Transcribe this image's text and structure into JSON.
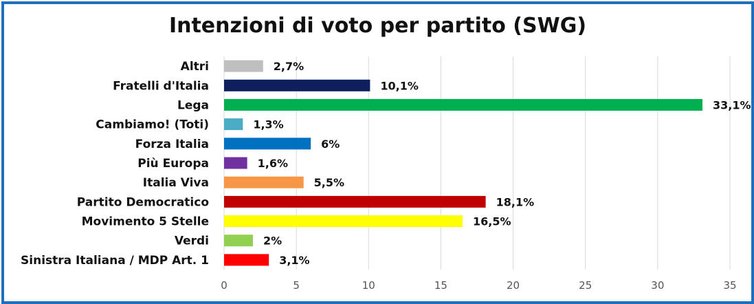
{
  "chart_data": {
    "type": "bar",
    "orientation": "horizontal",
    "title": "Intenzioni di voto per partito (SWG)",
    "categories": [
      "Altri",
      "Fratelli d'Italia",
      "Lega",
      "Cambiamo! (Toti)",
      "Forza Italia",
      "Più Europa",
      "Italia Viva",
      "Partito Democratico",
      "Movimento 5 Stelle",
      "Verdi",
      "Sinistra Italiana / MDP Art. 1"
    ],
    "values": [
      2.7,
      10.1,
      33.1,
      1.3,
      6,
      1.6,
      5.5,
      18.1,
      16.5,
      2,
      3.1
    ],
    "value_labels": [
      "2,7%",
      "10,1%",
      "33,1%",
      "1,3%",
      "6%",
      "1,6%",
      "5,5%",
      "18,1%",
      "16,5%",
      "2%",
      "3,1%"
    ],
    "colors": [
      "#bfbfbf",
      "#0d1f5c",
      "#00b050",
      "#4bacc6",
      "#0070c0",
      "#7030a0",
      "#f79646",
      "#c00000",
      "#ffff00",
      "#92d050",
      "#ff0000"
    ],
    "xlim": [
      0,
      35
    ],
    "xticks": [
      0,
      5,
      10,
      15,
      20,
      25,
      30,
      35
    ],
    "grid": true,
    "legend": "none"
  }
}
